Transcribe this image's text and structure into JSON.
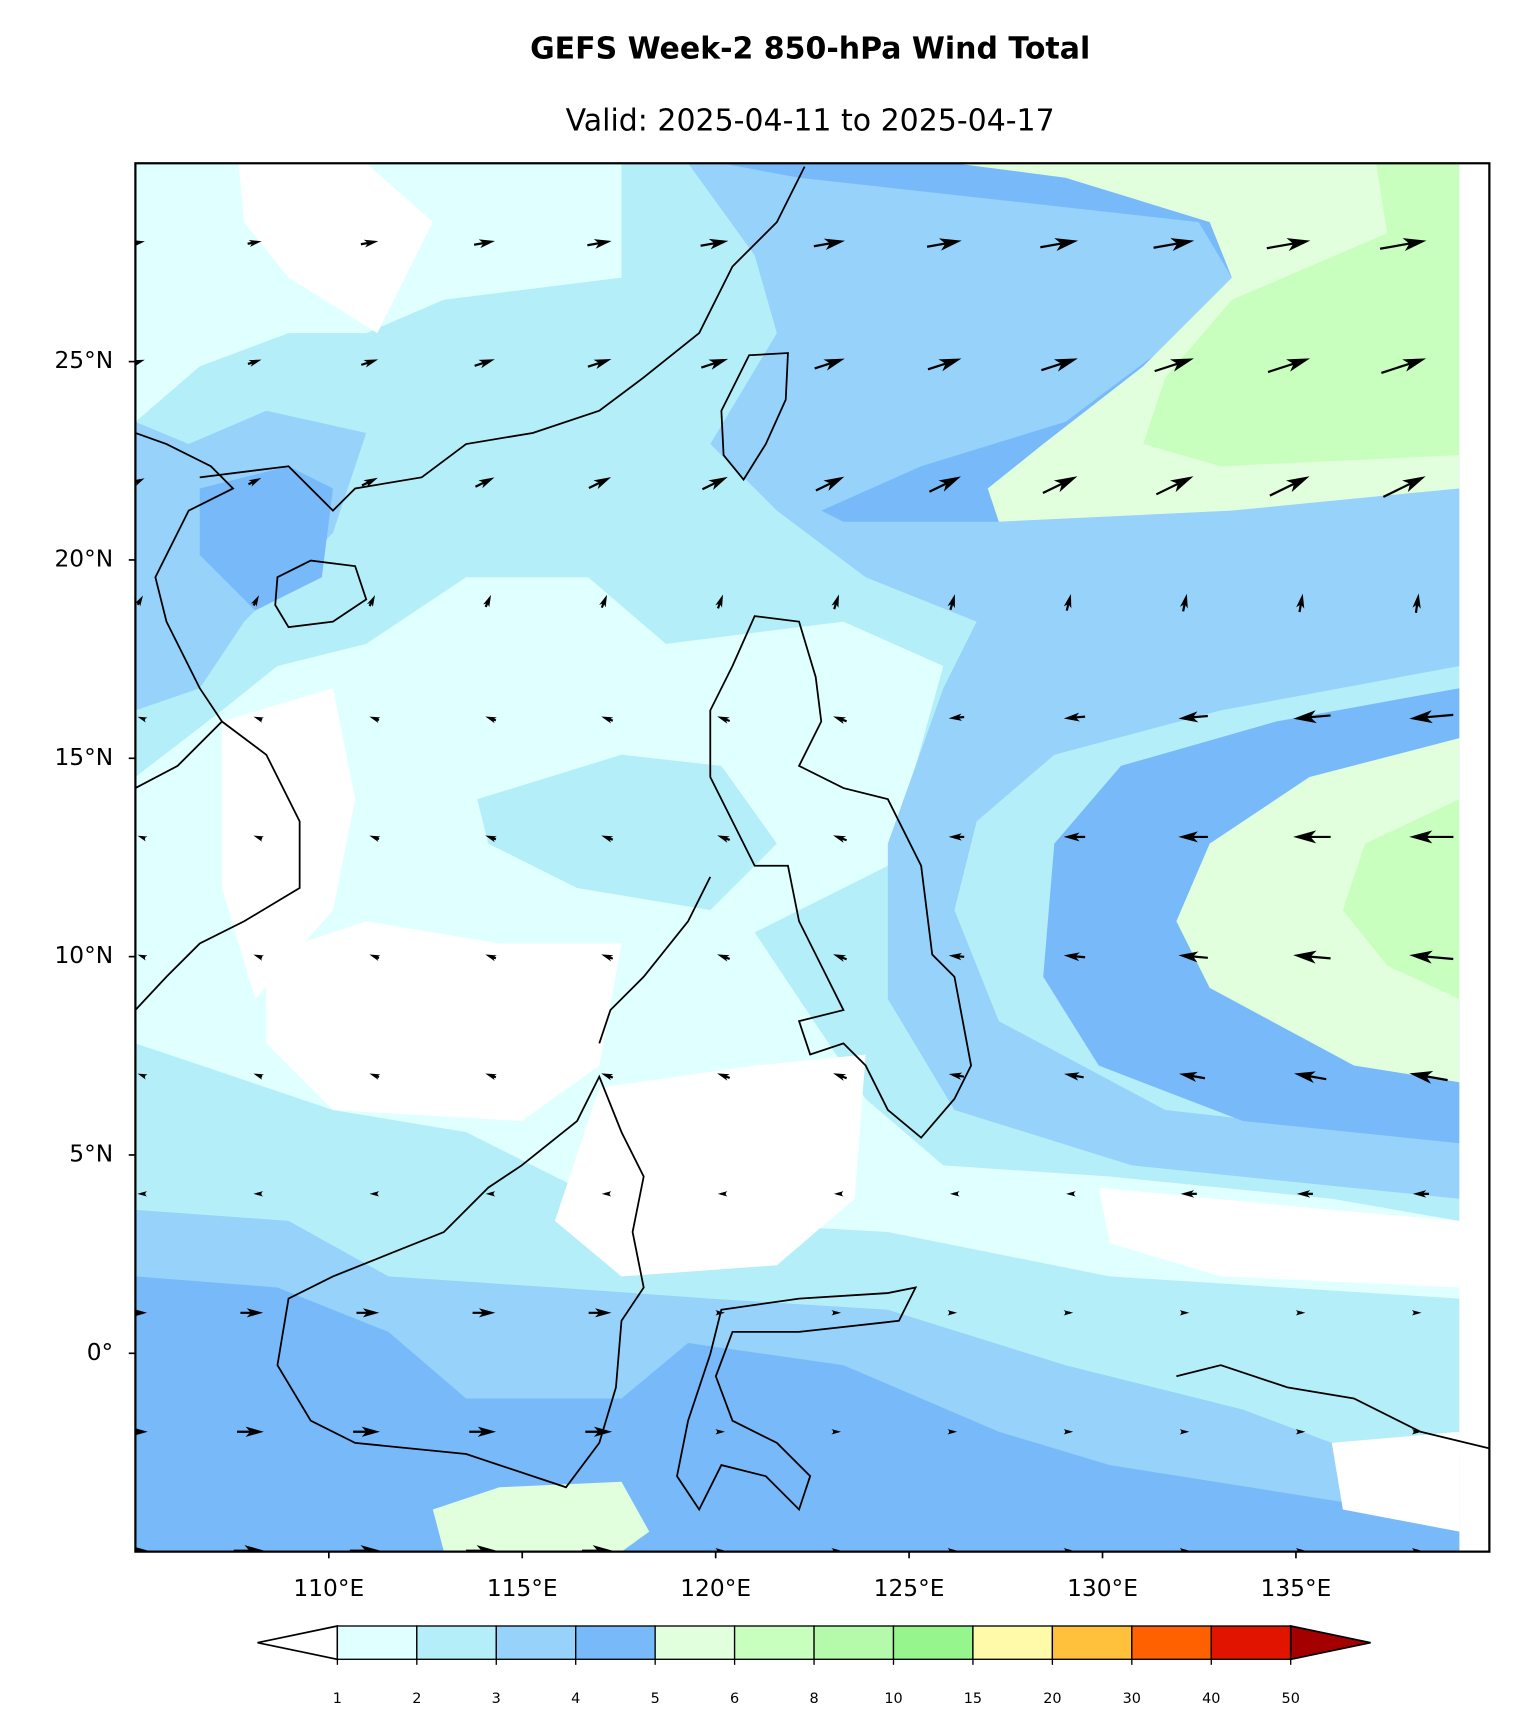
{
  "title": "GEFS Week-2 850-hPa Wind Total",
  "subtitle": "Valid: 2025-04-11 to 2025-04-17",
  "map": {
    "lonlim": [
      105,
      140
    ],
    "latlim": [
      -5,
      30
    ],
    "lon_ticks": [
      {
        "value": 110,
        "label": "110°E"
      },
      {
        "value": 115,
        "label": "115°E"
      },
      {
        "value": 120,
        "label": "120°E"
      },
      {
        "value": 125,
        "label": "125°E"
      },
      {
        "value": 130,
        "label": "130°E"
      },
      {
        "value": 135,
        "label": "135°E"
      }
    ],
    "lat_ticks": [
      {
        "value": 25,
        "label": "25°N"
      },
      {
        "value": 20,
        "label": "20°N"
      },
      {
        "value": 15,
        "label": "15°N"
      },
      {
        "value": 10,
        "label": "10°N"
      },
      {
        "value": 5,
        "label": "5°N"
      },
      {
        "value": 0,
        "label": "0°"
      }
    ]
  },
  "colorbar": {
    "levels": [
      1,
      2,
      3,
      4,
      5,
      6,
      8,
      10,
      15,
      20,
      30,
      40,
      50
    ],
    "colors": [
      "#e0ffff",
      "#b4eef8",
      "#96d2fa",
      "#78b9fa",
      "#e1ffdc",
      "#c8ffbe",
      "#b4faaa",
      "#96f58c",
      "#fffaaa",
      "#ffc03c",
      "#ff6000",
      "#e11400"
    ],
    "under_color": "#ffffff",
    "over_color": "#a50000"
  }
}
